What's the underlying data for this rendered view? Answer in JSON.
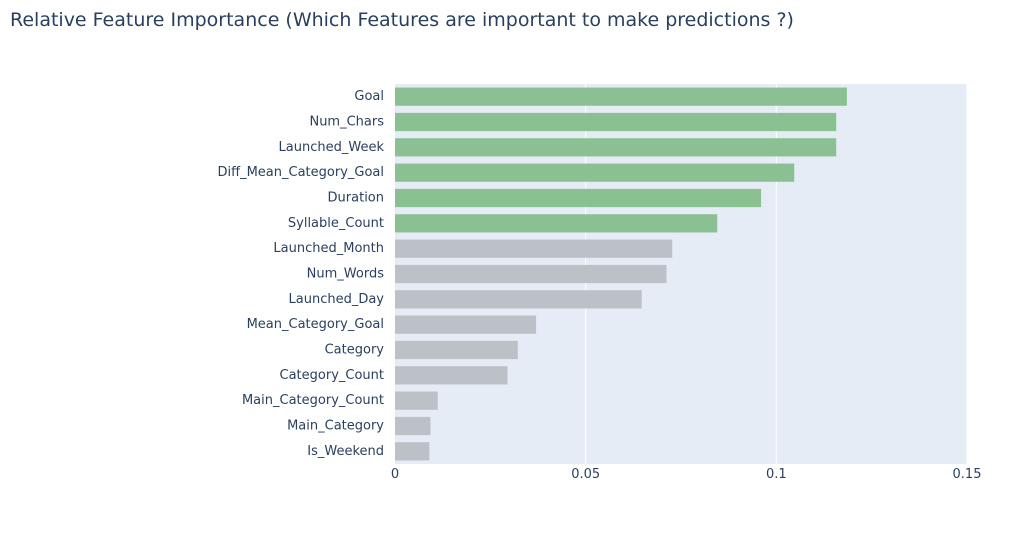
{
  "chart_data": {
    "type": "bar",
    "orientation": "horizontal",
    "title": "Relative Feature Importance (Which Features are important to make predictions ?)",
    "xlabel": "",
    "ylabel": "",
    "xlim": [
      0,
      0.15
    ],
    "x_ticks": [
      0,
      0.05,
      0.1,
      0.15
    ],
    "x_tick_labels": [
      "0",
      "0.05",
      "0.1",
      "0.15"
    ],
    "grid": true,
    "legend": "none",
    "plot_background": "#e5ecf6",
    "highlight_color": "#8bc192",
    "default_color": "#bcc0c7",
    "categories": [
      "Goal",
      "Num_Chars",
      "Launched_Week",
      "Diff_Mean_Category_Goal",
      "Duration",
      "Syllable_Count",
      "Launched_Month",
      "Num_Words",
      "Launched_Day",
      "Mean_Category_Goal",
      "Category",
      "Category_Count",
      "Main_Category_Count",
      "Main_Category",
      "Is_Weekend"
    ],
    "values": [
      0.1185,
      0.1157,
      0.1157,
      0.1047,
      0.096,
      0.0845,
      0.0727,
      0.0712,
      0.0647,
      0.037,
      0.0322,
      0.0295,
      0.0112,
      0.0093,
      0.009
    ],
    "highlighted": [
      true,
      true,
      true,
      true,
      true,
      true,
      false,
      false,
      false,
      false,
      false,
      false,
      false,
      false,
      false
    ]
  }
}
